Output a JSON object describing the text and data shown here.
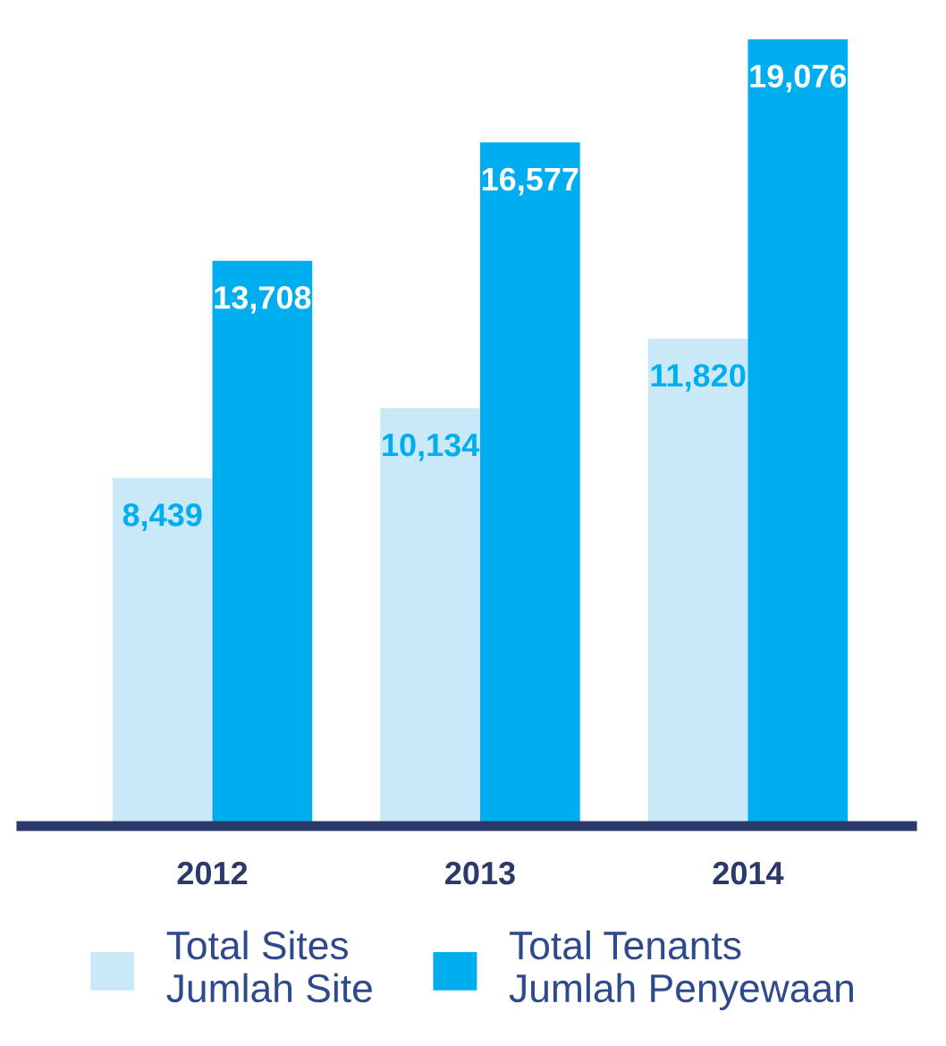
{
  "chart_data": {
    "type": "bar",
    "categories": [
      "2012",
      "2013",
      "2014"
    ],
    "series": [
      {
        "name": "Total Sites\nJumlah Site",
        "color": "#c9e9f9",
        "values": [
          8439,
          10134,
          11820
        ],
        "value_labels": [
          "8,439",
          "10,134",
          "11,820"
        ]
      },
      {
        "name": "Total Tenants\nJumlah Penyewaan",
        "color": "#00aeef",
        "values": [
          13708,
          16577,
          19076
        ],
        "value_labels": [
          "13,708",
          "16,577",
          "19,076"
        ]
      }
    ],
    "tick_labels": "x",
    "grid": false,
    "legend": "bottom"
  }
}
